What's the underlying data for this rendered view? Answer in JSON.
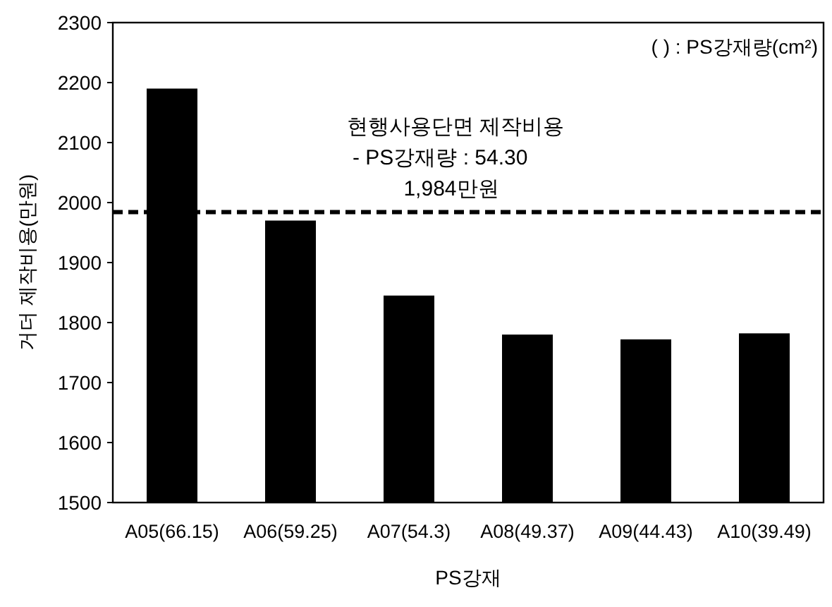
{
  "chart_data": {
    "type": "bar",
    "categories": [
      "A05(66.15)",
      "A06(59.25)",
      "A07(54.3)",
      "A08(49.37)",
      "A09(44.43)",
      "A10(39.49)"
    ],
    "values": [
      2190,
      1970,
      1845,
      1780,
      1772,
      1782
    ],
    "color": "#000000",
    "xlabel": "PS강재",
    "ylabel": "거더 제작비용(만원)",
    "ylim": [
      1500,
      2300
    ],
    "yticks": [
      1500,
      1600,
      1700,
      1800,
      1900,
      2000,
      2100,
      2200,
      2300
    ],
    "ref_lines": [
      {
        "axis": "y",
        "value": 1984,
        "label": "현행사용단면 제작비용\n- PS강재량 : 54.30\n1,984만원",
        "color": "#000000",
        "line_style": "dashed"
      }
    ],
    "annotations": [
      "( ) : PS강재량(cm²)"
    ]
  }
}
